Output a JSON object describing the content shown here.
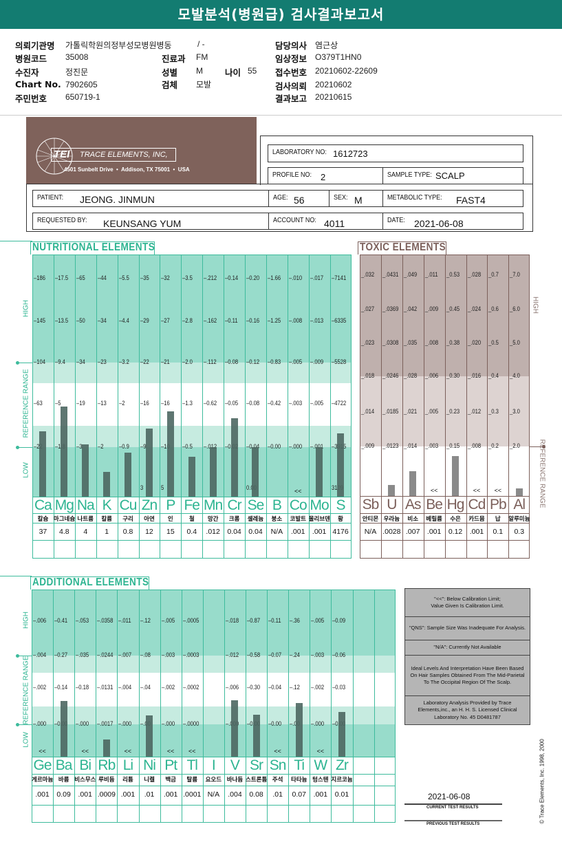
{
  "header": {
    "title": "모발분석(병원급) 검사결과보고서"
  },
  "info": {
    "institution_label": "의뢰기관명",
    "institution": "가톨릭학원의정부성모병원병동",
    "ward": "/ -",
    "doctor_label": "담당의사",
    "doctor": "염근상",
    "hospital_code_label": "병원코드",
    "hospital_code": "35008",
    "department_label": "진료과",
    "department": "FM",
    "clinical_label": "임상정보",
    "clinical": "O379T1HN0",
    "patient_label": "수진자",
    "patient": "정진문",
    "sex_label": "성별",
    "sex": "M",
    "age_label": "나이",
    "age": "55",
    "receipt_label": "접수번호",
    "receipt": "20210602-22609",
    "chart_label": "Chart No.",
    "chart": "7902605",
    "specimen_label": "검체",
    "specimen": "모발",
    "request_label": "검사의뢰",
    "request": "20210602",
    "id_label": "주민번호",
    "id": "650719-1",
    "report_label": "결과보고",
    "report": "20210615"
  },
  "lab": {
    "logo_text": "TEI",
    "company": "TRACE ELEMENTS, INC,",
    "address": "4501 Sunbelt Drive  •  Addison, TX 75001  •  USA",
    "lab_no_label": "LABORATORY NO:",
    "lab_no": "1612723",
    "profile_label": "PROFILE NO:",
    "profile": "2",
    "sample_label": "SAMPLE TYPE:",
    "sample": "SCALP",
    "patient_label": "PATIENT:",
    "patient": "JEONG. JINMUN",
    "age_label": "AGE:",
    "age": "56",
    "sex_label": "SEX:",
    "sex": "M",
    "metabolic_label": "METABOLIC TYPE:",
    "metabolic": "FAST4",
    "requested_label": "REQUESTED BY:",
    "requested": "KEUNSANG YUM",
    "account_label": "ACCOUNT NO:",
    "account": "4011",
    "date_label": "DATE:",
    "date": "2021-06-08"
  },
  "colors": {
    "header": "#137c71",
    "teal_dark": "#98dccb",
    "teal_light": "#c6ebe0",
    "teal_line": "#3dbb9c",
    "teal_text": "#2db491",
    "toxic_dark": "#bfb0ad",
    "toxic_light": "#ddd3d1",
    "toxic_line": "#7b5f5a",
    "bar_dark": "#4d6762",
    "bar_gray": "#7d7d7d"
  },
  "nutritional": {
    "title": "NUTRITIONAL ELEMENTS",
    "side_high": "HIGH",
    "side_ref": "REFERENCE RANGE",
    "side_low": "LOW",
    "columns": [
      {
        "symbol": "Ca",
        "name_ko": "칼슘",
        "result": "37",
        "ticks": [
          "186",
          "145",
          "104",
          "63",
          "22"
        ],
        "bar": true
      },
      {
        "symbol": "Mg",
        "name_ko": "마그네슘",
        "result": "4.8",
        "ticks": [
          "17.5",
          "13.5",
          "9.4",
          "5",
          "1.8"
        ],
        "bar": true
      },
      {
        "symbol": "Na",
        "name_ko": "나트륨",
        "result": "4",
        "ticks": [
          "65",
          "50",
          "34",
          "19",
          "3"
        ],
        "bar": true
      },
      {
        "symbol": "K",
        "name_ko": "칼륨",
        "result": "1",
        "ticks": [
          "44",
          "34",
          "23",
          "13",
          "2"
        ],
        "bar": true
      },
      {
        "symbol": "Cu",
        "name_ko": "구리",
        "result": "0.8",
        "ticks": [
          "5.5",
          "4.4",
          "3.2",
          "2",
          "0.9"
        ],
        "bar": true
      },
      {
        "symbol": "Zn",
        "name_ko": "아연",
        "result": "12",
        "ticks": [
          "35",
          "29",
          "22",
          "16",
          "9"
        ],
        "low_tick": "3",
        "bar": true
      },
      {
        "symbol": "P",
        "name_ko": "인",
        "result": "15",
        "ticks": [
          "32",
          "27",
          "21",
          "16",
          "10"
        ],
        "low_tick": "5",
        "bar": true
      },
      {
        "symbol": "Fe",
        "name_ko": "철",
        "result": "0.4",
        "ticks": [
          "3.5",
          "2.8",
          "2.0",
          "1.3",
          "0.5"
        ],
        "bar": true
      },
      {
        "symbol": "Mn",
        "name_ko": "망간",
        "result": ".012",
        "ticks": [
          ".212",
          ".162",
          ".112",
          "0.62",
          ".012"
        ],
        "bar": true
      },
      {
        "symbol": "Cr",
        "name_ko": "크롬",
        "result": "0.04",
        "ticks": [
          "0.14",
          "0.11",
          "0.08",
          "0.05",
          "0.02"
        ],
        "bar": true
      },
      {
        "symbol": "Se",
        "name_ko": "셀레늄",
        "result": "0.04",
        "ticks": [
          "0.20",
          "0.16",
          "0.12",
          "0.08",
          "0.04"
        ],
        "low_tick": "0.00",
        "bar": true
      },
      {
        "symbol": "B",
        "name_ko": "붕소",
        "result": "N/A",
        "ticks": [
          "1.66",
          "1.25",
          "0.83",
          "0.42",
          "0.00"
        ],
        "bar": false
      },
      {
        "symbol": "Co",
        "name_ko": "코발트",
        "result": ".001",
        "ticks": [
          ".010",
          ".008",
          ".005",
          ".003",
          ".000"
        ],
        "bar": false,
        "below_limit": "<<"
      },
      {
        "symbol": "Mo",
        "name_ko": "몰리브덴",
        "result": ".001",
        "ticks": [
          ".017",
          ".013",
          ".009",
          ".005",
          ".001"
        ],
        "bar": true
      },
      {
        "symbol": "S",
        "name_ko": "황",
        "result": "4176",
        "ticks": [
          "7141",
          "6335",
          "5528",
          "4722",
          "3915"
        ],
        "low_tick": "3109",
        "bar": true
      }
    ]
  },
  "toxic": {
    "title": "TOXIC ELEMENTS",
    "side_high": "HIGH",
    "side_ref": "REFERENCE RANGE",
    "columns": [
      {
        "symbol": "Sb",
        "name_ko": "안티몬",
        "result": "N/A",
        "ticks": [
          ".032",
          ".027",
          ".023",
          ".018",
          ".014",
          ".009"
        ],
        "bar": false
      },
      {
        "symbol": "U",
        "name_ko": "우라늄",
        "result": ".0028",
        "ticks": [
          ".0431",
          ".0369",
          ".0308",
          ".0246",
          ".0185",
          ".0123"
        ],
        "bar": true
      },
      {
        "symbol": "As",
        "name_ko": "비소",
        "result": ".007",
        "ticks": [
          ".049",
          ".042",
          ".035",
          ".028",
          ".021",
          ".014"
        ],
        "bar": true
      },
      {
        "symbol": "Be",
        "name_ko": "베릴륨",
        "result": ".001",
        "ticks": [
          ".011",
          ".009",
          ".008",
          ".006",
          ".005",
          ".003"
        ],
        "bar": false,
        "below_limit": "<<"
      },
      {
        "symbol": "Hg",
        "name_ko": "수은",
        "result": "0.12",
        "ticks": [
          "0.53",
          "0.45",
          "0.38",
          "0.30",
          "0.23",
          "0.15"
        ],
        "bar": true
      },
      {
        "symbol": "Cd",
        "name_ko": "카드뮴",
        "result": ".001",
        "ticks": [
          ".028",
          ".024",
          ".020",
          ".016",
          ".012",
          ".008"
        ],
        "bar": false,
        "below_limit": "<<"
      },
      {
        "symbol": "Pb",
        "name_ko": "납",
        "result": "0.1",
        "ticks": [
          "0.7",
          "0.6",
          "0.5",
          "0.4",
          "0.3",
          "0.2"
        ],
        "bar": false,
        "below_limit": "<<"
      },
      {
        "symbol": "Al",
        "name_ko": "알루미늄",
        "result": "0.3",
        "ticks": [
          "7.0",
          "6.0",
          "5.0",
          "4.0",
          "3.0",
          "2.0"
        ],
        "bar": true
      }
    ]
  },
  "additional": {
    "title": "ADDITIONAL ELEMENTS",
    "side_high": "HIGH",
    "side_ref": "REFERENCE RANGE",
    "side_low": "LOW",
    "columns": [
      {
        "symbol": "Ge",
        "name_ko": "게르마늄",
        "result": ".001",
        "ticks": [
          ".006",
          ".004",
          ".002",
          ".000"
        ],
        "bar": false,
        "below_limit": "<<"
      },
      {
        "symbol": "Ba",
        "name_ko": "바륨",
        "result": "0.09",
        "ticks": [
          "0.41",
          "0.27",
          "0.14",
          "0.00"
        ],
        "bar": true
      },
      {
        "symbol": "Bi",
        "name_ko": "비스무스",
        "result": ".001",
        "ticks": [
          ".053",
          ".035",
          "0.18",
          ".000"
        ],
        "bar": false,
        "below_limit": "<<"
      },
      {
        "symbol": "Rb",
        "name_ko": "루비듐",
        "result": ".0009",
        "ticks": [
          ".0358",
          ".0244",
          ".0131",
          ".0017"
        ],
        "bar": true
      },
      {
        "symbol": "Li",
        "name_ko": "리튬",
        "result": ".001",
        "ticks": [
          ".011",
          ".007",
          ".004",
          ".000"
        ],
        "bar": false,
        "below_limit": "<<"
      },
      {
        "symbol": "Ni",
        "name_ko": "니켈",
        "result": ".01",
        "ticks": [
          ".12",
          ".08",
          ".04",
          ".00"
        ],
        "bar": true
      },
      {
        "symbol": "Pt",
        "name_ko": "백금",
        "result": ".001",
        "ticks": [
          ".005",
          ".003",
          ".002",
          ".000"
        ],
        "bar": false,
        "below_limit": "<<"
      },
      {
        "symbol": "Tl",
        "name_ko": "탈륨",
        "result": ".0001",
        "ticks": [
          ".0005",
          ".0003",
          ".0002",
          ".0000"
        ],
        "bar": false,
        "below_limit": "<<"
      },
      {
        "symbol": "I",
        "name_ko": "요오드",
        "result": "N/A",
        "ticks": [
          "",
          "",
          "",
          ""
        ],
        "bar": false
      },
      {
        "symbol": "V",
        "name_ko": "바나듐",
        "result": ".004",
        "ticks": [
          ".018",
          ".012",
          ".006",
          ".000"
        ],
        "bar": true
      },
      {
        "symbol": "Sr",
        "name_ko": "스트론튬",
        "result": "0.08",
        "ticks": [
          "0.87",
          "0.58",
          "0.30",
          "0.00"
        ],
        "bar": true
      },
      {
        "symbol": "Sn",
        "name_ko": "주석",
        "result": ".01",
        "ticks": [
          "0.11",
          "0.07",
          "0.04",
          "0.00"
        ],
        "bar": false,
        "below_limit": "<<"
      },
      {
        "symbol": "Ti",
        "name_ko": "타타늄",
        "result": "0.07",
        "ticks": [
          ".36",
          ".24",
          ".12",
          ".00"
        ],
        "bar": true
      },
      {
        "symbol": "W",
        "name_ko": "텅스텐",
        "result": ".001",
        "ticks": [
          ".005",
          ".003",
          ".002",
          ".000"
        ],
        "bar": false,
        "below_limit": "<<"
      },
      {
        "symbol": "Zr",
        "name_ko": "지르코늄",
        "result": "0.01",
        "ticks": [
          "0.09",
          "0.06",
          "0.03",
          "0.00"
        ],
        "bar": true
      },
      {
        "symbol": "",
        "name_ko": "",
        "result": "",
        "ticks": [
          "",
          "",
          "",
          ""
        ],
        "bar": false
      },
      {
        "symbol": "",
        "name_ko": "",
        "result": "",
        "ticks": [
          "",
          "",
          "",
          ""
        ],
        "bar": false
      }
    ]
  },
  "legend": {
    "below_limit": "\"<<\": Below Calibration Limit;\nValue Given Is Calibration Limit.",
    "qns": "\"QNS\": Sample Size Was Inadequate For Analysis.",
    "na": "\"N/A\": Currently Not Available",
    "ideal": "Ideal Levels And Interpretation Have Been Based On Hair Samples Obtained From The Mid-Parietal To The Occipital Region Of The Scalp.",
    "provider": "Laboratory Analysis Provided by Trace Elements,inc., an H. H. S. Licensed Clinical Laboratory No. 45 D0481787"
  },
  "footer": {
    "current_date": "2021-06-08",
    "current_label": "CURRENT TEST RESULTS",
    "previous_label": "PREVIOUS TEST RESULTS",
    "copyright": "© Trace Elements, Inc. 1998, 2000"
  }
}
